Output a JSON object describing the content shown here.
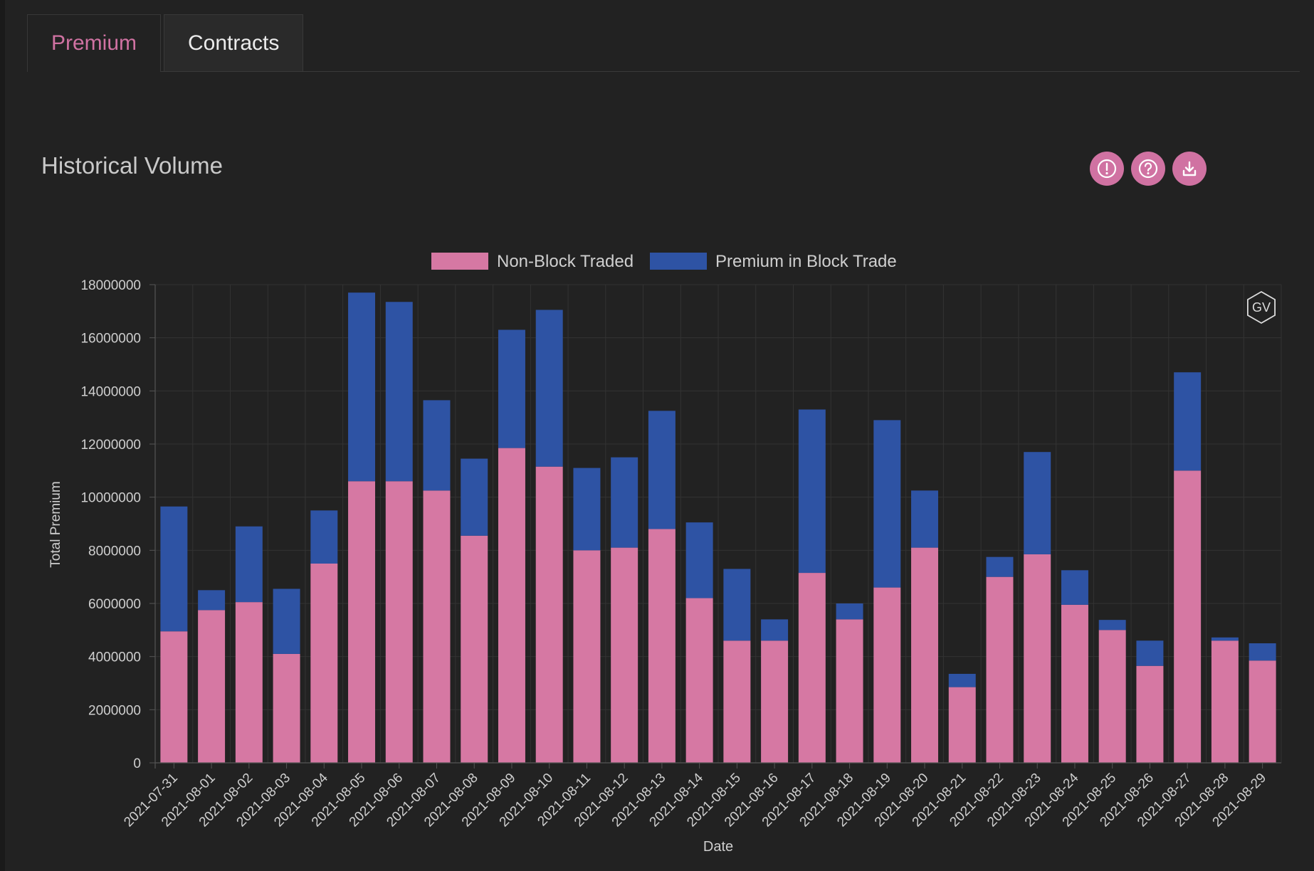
{
  "tabs": [
    {
      "label": "Premium",
      "active": true
    },
    {
      "label": "Contracts",
      "active": false
    }
  ],
  "section_title": "Historical Volume",
  "icons": [
    "info-icon",
    "help-icon",
    "download-icon"
  ],
  "watermark": "GV",
  "colors": {
    "background": "#222222",
    "accent": "#d072a2",
    "non_block": "#d678a3",
    "block": "#2e53a4"
  },
  "chart_data": {
    "type": "bar",
    "stacked": true,
    "xlabel": "Date",
    "ylabel": "Total Premium",
    "ylim": [
      0,
      18000000
    ],
    "yticks": [
      "0",
      "2000000",
      "4000000",
      "6000000",
      "8000000",
      "10000000",
      "12000000",
      "14000000",
      "16000000",
      "18000000"
    ],
    "legend_position": "top-center",
    "grid": true,
    "categories": [
      "2021-07-31",
      "2021-08-01",
      "2021-08-02",
      "2021-08-03",
      "2021-08-04",
      "2021-08-05",
      "2021-08-06",
      "2021-08-07",
      "2021-08-08",
      "2021-08-09",
      "2021-08-10",
      "2021-08-11",
      "2021-08-12",
      "2021-08-13",
      "2021-08-14",
      "2021-08-15",
      "2021-08-16",
      "2021-08-17",
      "2021-08-18",
      "2021-08-19",
      "2021-08-20",
      "2021-08-21",
      "2021-08-22",
      "2021-08-23",
      "2021-08-24",
      "2021-08-25",
      "2021-08-26",
      "2021-08-27",
      "2021-08-28",
      "2021-08-29"
    ],
    "series": [
      {
        "name": "Non-Block Traded",
        "color": "#d678a3",
        "values": [
          4950000,
          5750000,
          6050000,
          4100000,
          7500000,
          10600000,
          10600000,
          10250000,
          8550000,
          11850000,
          11150000,
          8000000,
          8100000,
          8800000,
          6200000,
          4600000,
          4600000,
          7150000,
          5400000,
          6600000,
          8100000,
          2850000,
          7000000,
          7850000,
          5950000,
          5000000,
          3650000,
          11000000,
          4600000,
          3850000
        ]
      },
      {
        "name": "Premium in Block Trade",
        "color": "#2e53a4",
        "values": [
          4700000,
          750000,
          2850000,
          2450000,
          2000000,
          7100000,
          6750000,
          3400000,
          2900000,
          4450000,
          5900000,
          3100000,
          3400000,
          4450000,
          2850000,
          2700000,
          800000,
          6150000,
          600000,
          6300000,
          2150000,
          500000,
          750000,
          3850000,
          1300000,
          380000,
          950000,
          3700000,
          120000,
          650000
        ]
      }
    ]
  }
}
